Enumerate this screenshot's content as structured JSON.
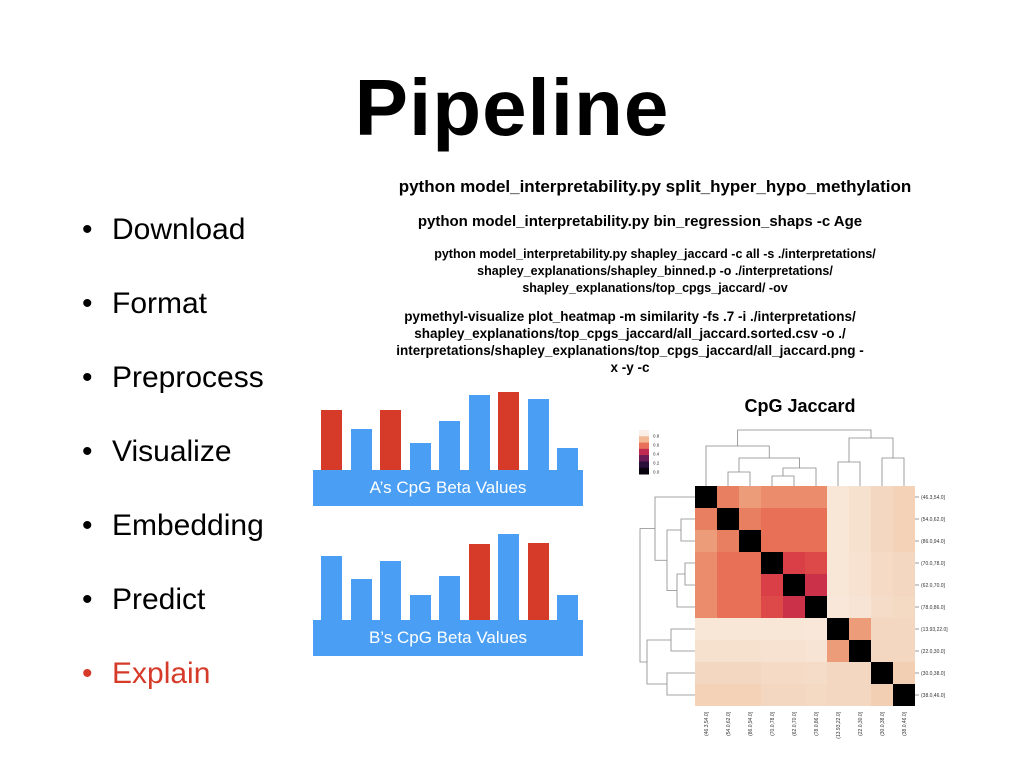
{
  "slide": {
    "title": "Pipeline",
    "bullets": [
      {
        "label": "Download",
        "color": "#000000"
      },
      {
        "label": "Format",
        "color": "#000000"
      },
      {
        "label": "Preprocess",
        "color": "#000000"
      },
      {
        "label": "Visualize",
        "color": "#000000"
      },
      {
        "label": "Embedding",
        "color": "#000000"
      },
      {
        "label": "Predict",
        "color": "#000000"
      },
      {
        "label": "Explain",
        "color": "#d63b2a"
      }
    ],
    "commands": {
      "cmd1": "python model_interpretability.py split_hyper_hypo_methylation",
      "cmd2": "python model_interpretability.py bin_regression_shaps -c Age",
      "cmd3": [
        "python model_interpretability.py shapley_jaccard -c all -s ./interpretations/",
        "shapley_explanations/shapley_binned.p  -o ./interpretations/",
        "shapley_explanations/top_cpgs_jaccard/ -ov"
      ],
      "cmd4": [
        "pymethyl-visualize plot_heatmap -m similarity -fs .7 -i ./interpretations/",
        "shapley_explanations/top_cpgs_jaccard/all_jaccard.sorted.csv -o ./",
        "interpretations/shapley_explanations/top_cpgs_jaccard/all_jaccard.png -",
        "x -y -c"
      ]
    }
  },
  "diagrams": {
    "a_label": "A’s CpG Beta Values",
    "b_label": "B’s CpG Beta Values",
    "colors": {
      "blue": "#4a9ff5",
      "red": "#d63b2a"
    },
    "a_bars": [
      {
        "level": 0.54,
        "highlight": true
      },
      {
        "level": 0.37,
        "highlight": false
      },
      {
        "level": 0.54,
        "highlight": true
      },
      {
        "level": 0.24,
        "highlight": false
      },
      {
        "level": 0.44,
        "highlight": false
      },
      {
        "level": 0.67,
        "highlight": false
      },
      {
        "level": 0.7,
        "highlight": true
      },
      {
        "level": 0.63,
        "highlight": false
      },
      {
        "level": 0.2,
        "highlight": false
      }
    ],
    "b_bars": [
      {
        "level": 0.57,
        "highlight": false
      },
      {
        "level": 0.37,
        "highlight": false
      },
      {
        "level": 0.53,
        "highlight": false
      },
      {
        "level": 0.22,
        "highlight": false
      },
      {
        "level": 0.39,
        "highlight": false
      },
      {
        "level": 0.68,
        "highlight": true
      },
      {
        "level": 0.77,
        "highlight": false
      },
      {
        "level": 0.69,
        "highlight": true
      },
      {
        "level": 0.22,
        "highlight": false
      }
    ]
  },
  "chart_data": {
    "type": "heatmap",
    "title": "CpG Jaccard",
    "labels": [
      "(46.3,54.0]",
      "(54.0,62.0]",
      "(86.0,94.0]",
      "(70.0,78.0]",
      "(62.0,70.0]",
      "(78.0,86.0]",
      "(13.93,22.0]",
      "(22.0,30.0]",
      "(30.0,38.0]",
      "(38.0,46.0]"
    ],
    "colorbar_ticks": [
      "0.8",
      "0.6",
      "0.4",
      "0.2",
      "0.0"
    ],
    "values": [
      [
        1.0,
        0.55,
        0.45,
        0.5,
        0.5,
        0.5,
        0.05,
        0.1,
        0.15,
        0.18
      ],
      [
        0.55,
        1.0,
        0.55,
        0.6,
        0.6,
        0.6,
        0.05,
        0.1,
        0.15,
        0.18
      ],
      [
        0.45,
        0.55,
        1.0,
        0.6,
        0.6,
        0.6,
        0.05,
        0.1,
        0.15,
        0.18
      ],
      [
        0.5,
        0.6,
        0.6,
        1.0,
        0.75,
        0.72,
        0.05,
        0.08,
        0.13,
        0.15
      ],
      [
        0.5,
        0.6,
        0.6,
        0.75,
        1.0,
        0.8,
        0.05,
        0.08,
        0.13,
        0.15
      ],
      [
        0.5,
        0.6,
        0.6,
        0.72,
        0.8,
        1.0,
        0.03,
        0.06,
        0.12,
        0.14
      ],
      [
        0.05,
        0.05,
        0.05,
        0.05,
        0.05,
        0.03,
        1.0,
        0.45,
        0.15,
        0.15
      ],
      [
        0.1,
        0.1,
        0.1,
        0.08,
        0.08,
        0.06,
        0.45,
        1.0,
        0.15,
        0.15
      ],
      [
        0.15,
        0.15,
        0.15,
        0.13,
        0.13,
        0.12,
        0.15,
        0.15,
        1.0,
        0.2
      ],
      [
        0.18,
        0.18,
        0.18,
        0.15,
        0.15,
        0.14,
        0.15,
        0.15,
        0.2,
        1.0
      ]
    ],
    "colorbar_range": [
      0,
      1
    ]
  }
}
